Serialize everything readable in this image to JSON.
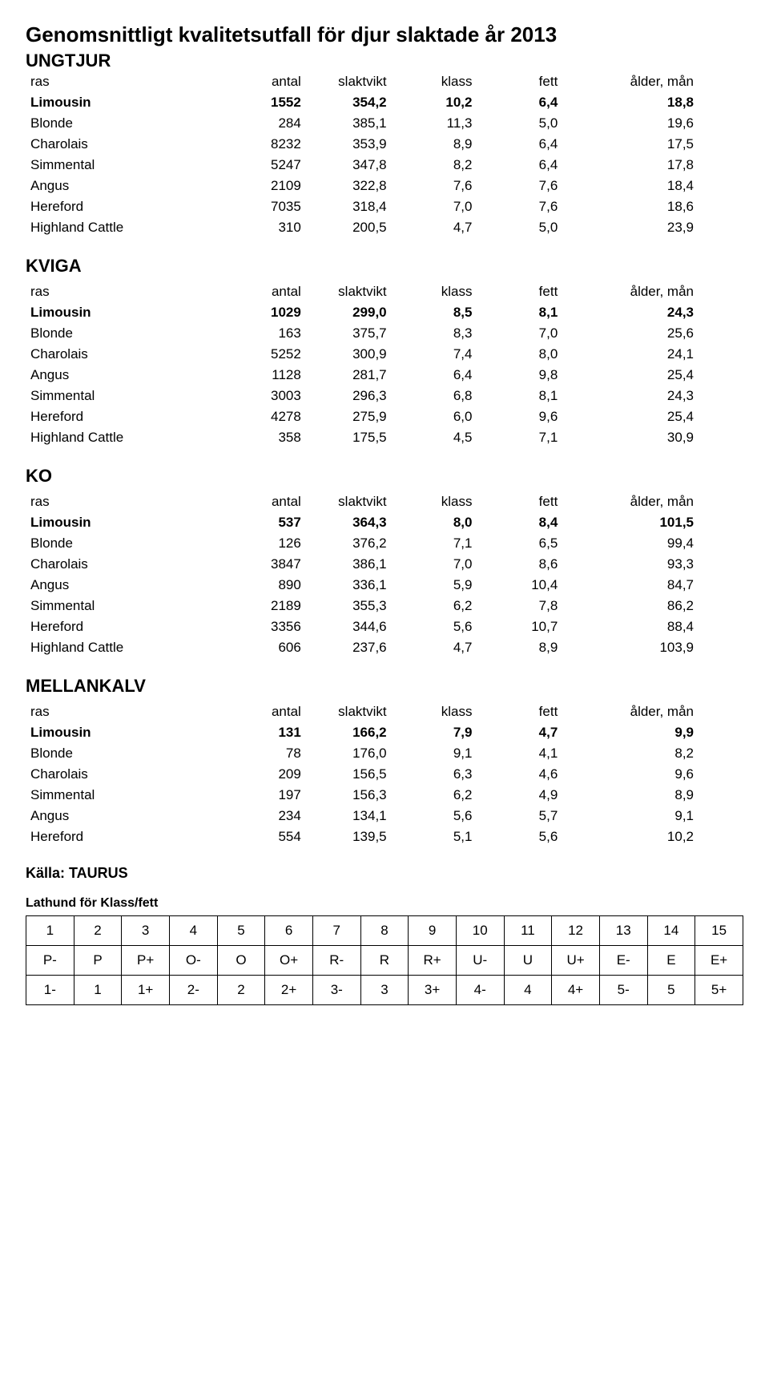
{
  "title": "Genomsnittligt kvalitetsutfall för djur slaktade år 2013",
  "cols_normal": [
    "ras",
    "antal",
    "slaktvikt",
    "klass",
    "fett",
    "ålder, mån"
  ],
  "sections": [
    {
      "heading": "UNGTJUR",
      "header_above": false,
      "rows": [
        {
          "bold": true,
          "cells": [
            "Limousin",
            "1552",
            "354,2",
            "10,2",
            "6,4",
            "18,8"
          ]
        },
        {
          "bold": false,
          "cells": [
            "Blonde",
            "284",
            "385,1",
            "11,3",
            "5,0",
            "19,6"
          ]
        },
        {
          "bold": false,
          "cells": [
            "Charolais",
            "8232",
            "353,9",
            "8,9",
            "6,4",
            "17,5"
          ]
        },
        {
          "bold": false,
          "cells": [
            "Simmental",
            "5247",
            "347,8",
            "8,2",
            "6,4",
            "17,8"
          ]
        },
        {
          "bold": false,
          "cells": [
            "Angus",
            "2109",
            "322,8",
            "7,6",
            "7,6",
            "18,4"
          ]
        },
        {
          "bold": false,
          "cells": [
            "Hereford",
            "7035",
            "318,4",
            "7,0",
            "7,6",
            "18,6"
          ]
        },
        {
          "bold": false,
          "cells": [
            "Highland Cattle",
            "310",
            "200,5",
            "4,7",
            "5,0",
            "23,9"
          ]
        }
      ]
    },
    {
      "heading": "KVIGA",
      "header_above": true,
      "rows": [
        {
          "bold": true,
          "cells": [
            "Limousin",
            "1029",
            "299,0",
            "8,5",
            "8,1",
            "24,3"
          ]
        },
        {
          "bold": false,
          "cells": [
            "Blonde",
            "163",
            "375,7",
            "8,3",
            "7,0",
            "25,6"
          ]
        },
        {
          "bold": false,
          "cells": [
            "Charolais",
            "5252",
            "300,9",
            "7,4",
            "8,0",
            "24,1"
          ]
        },
        {
          "bold": false,
          "cells": [
            "Angus",
            "1128",
            "281,7",
            "6,4",
            "9,8",
            "25,4"
          ]
        },
        {
          "bold": false,
          "cells": [
            "Simmental",
            "3003",
            "296,3",
            "6,8",
            "8,1",
            "24,3"
          ]
        },
        {
          "bold": false,
          "cells": [
            "Hereford",
            "4278",
            "275,9",
            "6,0",
            "9,6",
            "25,4"
          ]
        },
        {
          "bold": false,
          "cells": [
            "Highland Cattle",
            "358",
            "175,5",
            "4,5",
            "7,1",
            "30,9"
          ]
        }
      ]
    },
    {
      "heading": "KO",
      "header_above": true,
      "rows": [
        {
          "bold": true,
          "cells": [
            "Limousin",
            "537",
            "364,3",
            "8,0",
            "8,4",
            "101,5"
          ]
        },
        {
          "bold": false,
          "cells": [
            "Blonde",
            "126",
            "376,2",
            "7,1",
            "6,5",
            "99,4"
          ]
        },
        {
          "bold": false,
          "cells": [
            "Charolais",
            "3847",
            "386,1",
            "7,0",
            "8,6",
            "93,3"
          ]
        },
        {
          "bold": false,
          "cells": [
            "Angus",
            "890",
            "336,1",
            "5,9",
            "10,4",
            "84,7"
          ]
        },
        {
          "bold": false,
          "cells": [
            "Simmental",
            "2189",
            "355,3",
            "6,2",
            "7,8",
            "86,2"
          ]
        },
        {
          "bold": false,
          "cells": [
            "Hereford",
            "3356",
            "344,6",
            "5,6",
            "10,7",
            "88,4"
          ]
        },
        {
          "bold": false,
          "cells": [
            "Highland Cattle",
            "606",
            "237,6",
            "4,7",
            "8,9",
            "103,9"
          ]
        }
      ]
    },
    {
      "heading": "MELLANKALV",
      "header_above": true,
      "rows": [
        {
          "bold": true,
          "cells": [
            "Limousin",
            "131",
            "166,2",
            "7,9",
            "4,7",
            "9,9"
          ]
        },
        {
          "bold": false,
          "cells": [
            "Blonde",
            "78",
            "176,0",
            "9,1",
            "4,1",
            "8,2"
          ]
        },
        {
          "bold": false,
          "cells": [
            "Charolais",
            "209",
            "156,5",
            "6,3",
            "4,6",
            "9,6"
          ]
        },
        {
          "bold": false,
          "cells": [
            "Simmental",
            "197",
            "156,3",
            "6,2",
            "4,9",
            "8,9"
          ]
        },
        {
          "bold": false,
          "cells": [
            "Angus",
            "234",
            "134,1",
            "5,6",
            "5,7",
            "9,1"
          ]
        },
        {
          "bold": false,
          "cells": [
            "Hereford",
            "554",
            "139,5",
            "5,1",
            "5,6",
            "10,2"
          ]
        }
      ]
    }
  ],
  "source_label": "Källa: TAURUS",
  "lathund_title": "Lathund för Klass/fett",
  "grid": {
    "rows": [
      [
        "1",
        "2",
        "3",
        "4",
        "5",
        "6",
        "7",
        "8",
        "9",
        "10",
        "11",
        "12",
        "13",
        "14",
        "15"
      ],
      [
        "P-",
        "P",
        "P+",
        "O-",
        "O",
        "O+",
        "R-",
        "R",
        "R+",
        "U-",
        "U",
        "U+",
        "E-",
        "E",
        "E+"
      ],
      [
        "1-",
        "1",
        "1+",
        "2-",
        "2",
        "2+",
        "3-",
        "3",
        "3+",
        "4-",
        "4",
        "4+",
        "5-",
        "5",
        "5+"
      ]
    ]
  }
}
